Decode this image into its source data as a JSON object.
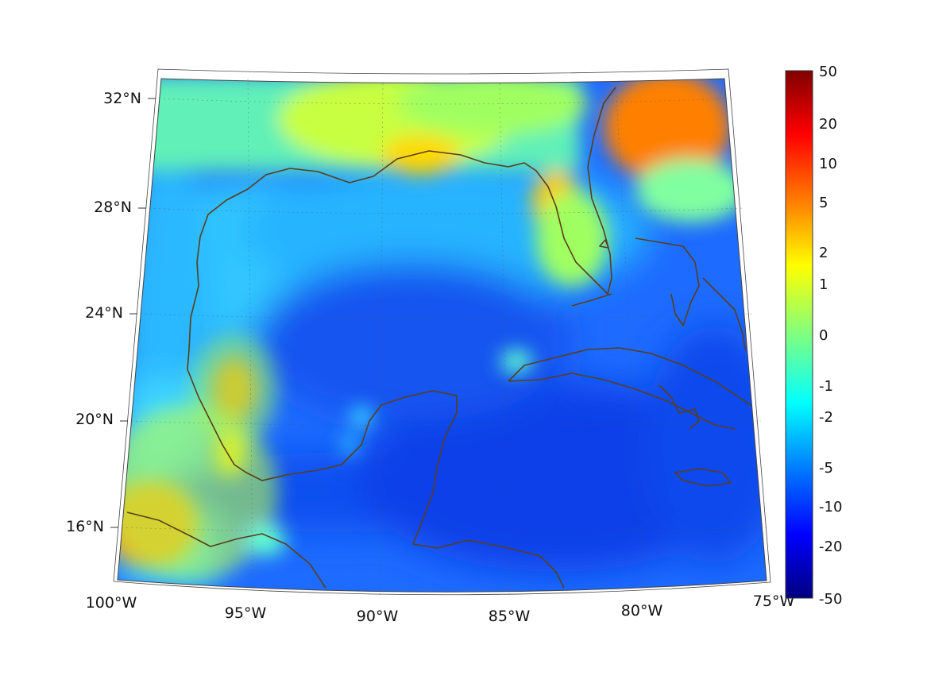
{
  "map": {
    "projection": "conic",
    "lon_range": [
      -100,
      -75
    ],
    "lat_range": [
      14.3,
      32.8
    ],
    "lat_ticks": [
      {
        "lat": 32,
        "label": "32°N"
      },
      {
        "lat": 28,
        "label": "28°N"
      },
      {
        "lat": 24,
        "label": "24°N"
      },
      {
        "lat": 20,
        "label": "20°N"
      },
      {
        "lat": 16,
        "label": "16°N"
      }
    ],
    "lon_ticks": [
      {
        "lon": -100,
        "label": "100°W"
      },
      {
        "lon": -95,
        "label": "95°W"
      },
      {
        "lon": -90,
        "label": "90°W"
      },
      {
        "lon": -85,
        "label": "85°W"
      },
      {
        "lon": -80,
        "label": "80°W"
      },
      {
        "lon": -75,
        "label": "75°W"
      }
    ],
    "grid": true,
    "coastline_color": "#5a3e1b"
  },
  "colorbar": {
    "ticks": [
      "50",
      "20",
      "10",
      "5",
      "2",
      "1",
      "0",
      "-1",
      "-2",
      "-5",
      "-10",
      "-20",
      "-50"
    ],
    "colormap": "jet",
    "colors": [
      "#800000",
      "#ff0000",
      "#ff8000",
      "#ffff00",
      "#80ff80",
      "#00ffff",
      "#0080ff",
      "#0000ff",
      "#000080"
    ]
  }
}
